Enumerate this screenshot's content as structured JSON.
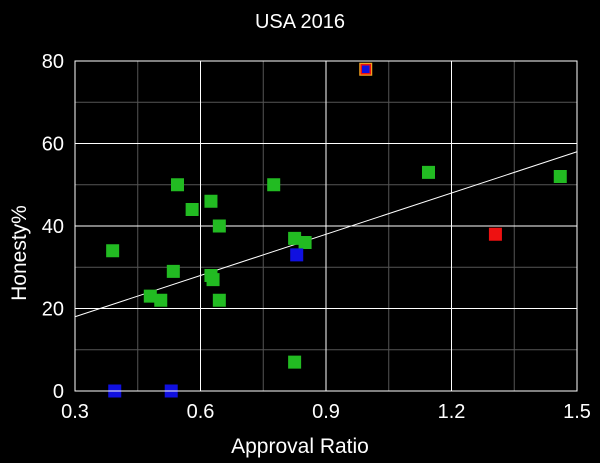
{
  "chart_data": {
    "type": "scatter",
    "title": "USA 2016",
    "xlabel": "Approval Ratio",
    "ylabel": "Honesty%",
    "xlim": [
      0.3,
      1.5
    ],
    "ylim": [
      0,
      80
    ],
    "x_ticks": [
      "0.3",
      "0.6",
      "0.9",
      "1.2",
      "1.5"
    ],
    "y_ticks": [
      "0",
      "20",
      "40",
      "60",
      "80"
    ],
    "x_tick_values": [
      0.3,
      0.6,
      0.9,
      1.2,
      1.5
    ],
    "y_tick_values": [
      0,
      20,
      40,
      60,
      80
    ],
    "grid": true,
    "colors": {
      "background": "#000000",
      "green": "#22bb22",
      "blue": "#1010e0",
      "red": "#ee1111",
      "orange": "#f0a020",
      "grid_major": "#ffffff",
      "grid_minor": "#555555"
    },
    "points": [
      {
        "x": 0.39,
        "y": 34,
        "color": "green"
      },
      {
        "x": 0.48,
        "y": 23,
        "color": "green"
      },
      {
        "x": 0.505,
        "y": 22,
        "color": "green"
      },
      {
        "x": 0.535,
        "y": 29,
        "color": "green"
      },
      {
        "x": 0.545,
        "y": 50,
        "color": "green"
      },
      {
        "x": 0.58,
        "y": 44,
        "color": "green"
      },
      {
        "x": 0.625,
        "y": 46,
        "color": "green"
      },
      {
        "x": 0.625,
        "y": 28,
        "color": "green"
      },
      {
        "x": 0.63,
        "y": 27,
        "color": "green"
      },
      {
        "x": 0.645,
        "y": 40,
        "color": "green"
      },
      {
        "x": 0.645,
        "y": 22,
        "color": "green"
      },
      {
        "x": 0.775,
        "y": 50,
        "color": "green"
      },
      {
        "x": 0.825,
        "y": 37,
        "color": "green"
      },
      {
        "x": 0.85,
        "y": 36,
        "color": "green"
      },
      {
        "x": 0.825,
        "y": 7,
        "color": "green"
      },
      {
        "x": 1.145,
        "y": 53,
        "color": "green"
      },
      {
        "x": 1.46,
        "y": 52,
        "color": "green"
      },
      {
        "x": 0.395,
        "y": 0,
        "color": "blue"
      },
      {
        "x": 0.53,
        "y": 0,
        "color": "blue"
      },
      {
        "x": 0.83,
        "y": 33,
        "color": "blue"
      },
      {
        "x": 1.305,
        "y": 38,
        "color": "red"
      },
      {
        "x": 0.995,
        "y": 78,
        "color": "blue",
        "outline": "red",
        "fill": "orange"
      }
    ],
    "trendline": {
      "x": [
        0.3,
        1.5
      ],
      "y": [
        18,
        58
      ]
    }
  }
}
